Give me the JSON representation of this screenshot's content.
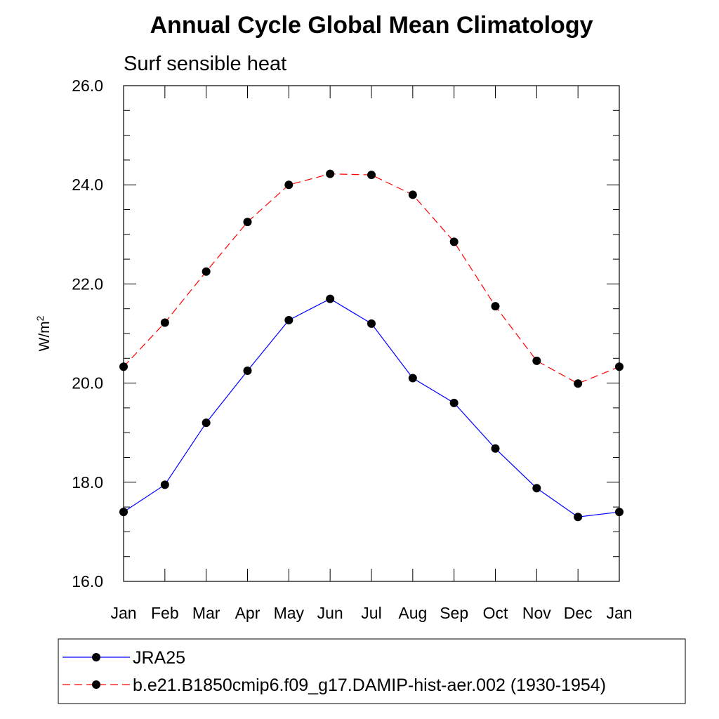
{
  "chart_data": {
    "type": "line",
    "title": "Annual Cycle Global Mean Climatology",
    "subtitle": "Surf sensible heat",
    "ylabel": "W/m",
    "ylabel_superscript": "2",
    "xlabel": "",
    "categories": [
      "Jan",
      "Feb",
      "Mar",
      "Apr",
      "May",
      "Jun",
      "Jul",
      "Aug",
      "Sep",
      "Oct",
      "Nov",
      "Dec",
      "Jan"
    ],
    "ylim": [
      16.0,
      26.0
    ],
    "yticks": [
      "16.0",
      "18.0",
      "20.0",
      "22.0",
      "24.0",
      "26.0"
    ],
    "grid": false,
    "legend_position": "bottom",
    "series": [
      {
        "name": "JRA25",
        "color": "#0000ff",
        "dash": "solid",
        "values": [
          17.4,
          17.95,
          19.2,
          20.25,
          21.27,
          21.7,
          21.2,
          20.1,
          19.6,
          18.68,
          17.88,
          17.3,
          17.4
        ]
      },
      {
        "name": "b.e21.B1850cmip6.f09_g17.DAMIP-hist-aer.002 (1930-1954)",
        "color": "#ff0000",
        "dash": "dashed",
        "values": [
          20.33,
          21.22,
          22.25,
          23.25,
          24.0,
          24.22,
          24.2,
          23.8,
          22.85,
          21.55,
          20.45,
          19.99,
          20.33
        ]
      }
    ]
  }
}
